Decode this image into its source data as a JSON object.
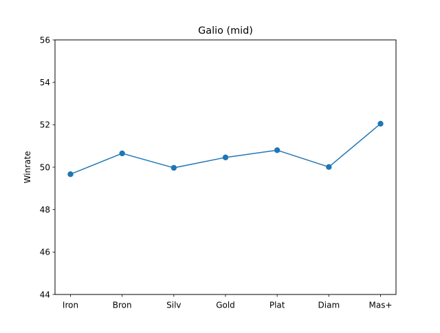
{
  "chart_data": {
    "type": "line",
    "title": "Galio (mid)",
    "xlabel": "",
    "ylabel": "Winrate",
    "categories": [
      "Iron",
      "Bron",
      "Silv",
      "Gold",
      "Plat",
      "Diam",
      "Mas+"
    ],
    "series": [
      {
        "values": [
          49.67,
          50.65,
          49.97,
          50.46,
          50.8,
          50.01,
          52.05
        ],
        "color": "#1f77b4",
        "marker": "circle"
      }
    ],
    "ylim": [
      44,
      56
    ],
    "yticks": [
      44,
      46,
      48,
      50,
      52,
      54,
      56
    ],
    "grid": false,
    "legend": "none"
  }
}
